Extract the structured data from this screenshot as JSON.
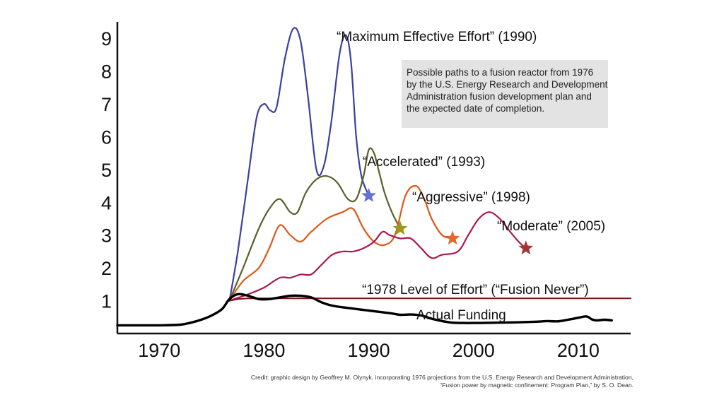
{
  "chart_data": {
    "type": "line",
    "title": "",
    "xlabel": "",
    "ylabel": "",
    "xlim": [
      1966,
      2015
    ],
    "ylim": [
      0,
      9.5
    ],
    "x_ticks": [
      1970,
      1980,
      1990,
      2000,
      2010
    ],
    "y_ticks": [
      1,
      2,
      3,
      4,
      5,
      6,
      7,
      8,
      9
    ],
    "series": [
      {
        "name": "Maximum Effective Effort",
        "label": "“Maximum Effective Effort” (1990)",
        "color": "#3b3fa0",
        "marker_color": "#6470d8",
        "end_marker": "star",
        "x": [
          1976.7,
          1977.5,
          1978.5,
          1979.3,
          1980.0,
          1980.6,
          1981.2,
          1982.0,
          1982.8,
          1983.5,
          1984.2,
          1985.0,
          1985.7,
          1986.4,
          1987.2,
          1987.8,
          1988.3,
          1988.8,
          1989.3,
          1990.0
        ],
        "y": [
          1.0,
          2.5,
          4.8,
          6.6,
          7.0,
          6.8,
          6.9,
          8.4,
          9.3,
          8.9,
          7.2,
          5.0,
          5.1,
          6.4,
          8.5,
          9.1,
          8.3,
          6.0,
          4.8,
          4.2
        ]
      },
      {
        "name": "Accelerated",
        "label": "“Accelerated” (1993)",
        "color": "#5a5f2a",
        "marker_color": "#9a9a1a",
        "end_marker": "star",
        "x": [
          1976.7,
          1978.0,
          1979.5,
          1980.5,
          1981.5,
          1982.5,
          1983.2,
          1984.0,
          1985.0,
          1986.0,
          1987.0,
          1988.0,
          1988.8,
          1989.5,
          1990.0,
          1990.5,
          1991.0,
          1991.5,
          1992.2,
          1993.0
        ],
        "y": [
          1.0,
          2.0,
          3.2,
          3.8,
          4.1,
          3.7,
          3.7,
          4.3,
          4.7,
          4.8,
          4.6,
          4.1,
          4.1,
          4.8,
          5.6,
          5.5,
          4.9,
          4.3,
          3.7,
          3.2
        ]
      },
      {
        "name": "Aggressive",
        "label": "“Aggressive” (1998)",
        "color": "#dd5718",
        "marker_color": "#e06a2a",
        "end_marker": "star",
        "x": [
          1976.7,
          1978.0,
          1979.5,
          1980.5,
          1981.5,
          1982.5,
          1983.5,
          1984.5,
          1986.0,
          1987.5,
          1988.5,
          1989.5,
          1990.5,
          1991.5,
          1992.5,
          1993.5,
          1994.5,
          1995.3,
          1996.0,
          1997.0,
          1998.0
        ],
        "y": [
          1.0,
          1.6,
          2.0,
          2.6,
          3.3,
          3.0,
          2.8,
          3.1,
          3.5,
          3.7,
          3.8,
          3.2,
          2.8,
          2.7,
          3.0,
          4.2,
          4.5,
          4.1,
          3.5,
          3.0,
          2.9
        ]
      },
      {
        "name": "Moderate",
        "label": "“Moderate” (2005)",
        "color": "#a8184e",
        "marker_color": "#a83232",
        "end_marker": "star",
        "x": [
          1976.7,
          1978.5,
          1980.0,
          1981.5,
          1982.5,
          1983.5,
          1984.5,
          1985.5,
          1986.5,
          1987.5,
          1988.5,
          1989.5,
          1990.5,
          1991.3,
          1992.0,
          1993.0,
          1994.0,
          1995.0,
          1996.0,
          1997.0,
          1998.5,
          1999.5,
          2000.5,
          2001.5,
          2002.5,
          2003.5,
          2004.3,
          2005.0
        ],
        "y": [
          1.0,
          1.2,
          1.4,
          1.7,
          1.7,
          1.8,
          1.8,
          2.1,
          2.4,
          2.5,
          2.5,
          2.6,
          2.8,
          3.1,
          3.0,
          2.9,
          2.9,
          2.6,
          2.3,
          2.4,
          2.5,
          3.0,
          3.5,
          3.7,
          3.5,
          3.1,
          2.8,
          2.6
        ]
      },
      {
        "name": "1978 Level of Effort",
        "label": "“1978 Level of Effort” (“Fusion Never”)",
        "color": "#7a1418",
        "end_marker": "none",
        "x": [
          1976.7,
          1977.5,
          1978.5,
          2015.0
        ],
        "y": [
          1.0,
          1.05,
          1.07,
          1.07
        ]
      },
      {
        "name": "Actual Funding",
        "label": "Actual Funding",
        "color": "#000000",
        "end_marker": "none",
        "x": [
          1966.0,
          1968.0,
          1970.0,
          1972.0,
          1973.0,
          1974.0,
          1975.0,
          1976.0,
          1976.7,
          1977.5,
          1978.5,
          1979.5,
          1980.5,
          1981.5,
          1982.5,
          1983.5,
          1984.5,
          1985.5,
          1986.5,
          1988.0,
          1990.0,
          1992.0,
          1993.0,
          1994.0,
          1995.0,
          1996.0,
          1997.0,
          1998.0,
          1999.0,
          2000.0,
          2002.0,
          2004.0,
          2006.0,
          2007.0,
          2008.0,
          2009.0,
          2010.0,
          2010.8,
          2011.3,
          2011.8,
          2012.5,
          2013.2
        ],
        "y": [
          0.25,
          0.25,
          0.25,
          0.27,
          0.33,
          0.42,
          0.55,
          0.75,
          1.05,
          1.2,
          1.15,
          1.05,
          1.05,
          1.1,
          1.15,
          1.15,
          1.1,
          0.95,
          0.85,
          0.78,
          0.7,
          0.62,
          0.57,
          0.58,
          0.55,
          0.45,
          0.38,
          0.33,
          0.32,
          0.32,
          0.33,
          0.34,
          0.36,
          0.38,
          0.37,
          0.42,
          0.48,
          0.52,
          0.43,
          0.4,
          0.42,
          0.4
        ]
      }
    ],
    "annotation": {
      "lines": [
        "Possible paths to a fusion reactor from 1976",
        "by the U.S. Energy Research and Development",
        "Administration fusion development plan and",
        "the expected date of completion."
      ],
      "background": "#e3e3e3"
    },
    "credit": {
      "lines": [
        "Credit: graphic design by Geoffrey M. Olynyk, incorporating 1976 projections from the U.S. Energy Research and Development Administration,",
        "“Fusion power by magnetic confinement: Program Plan,” by S. O. Dean."
      ]
    }
  }
}
